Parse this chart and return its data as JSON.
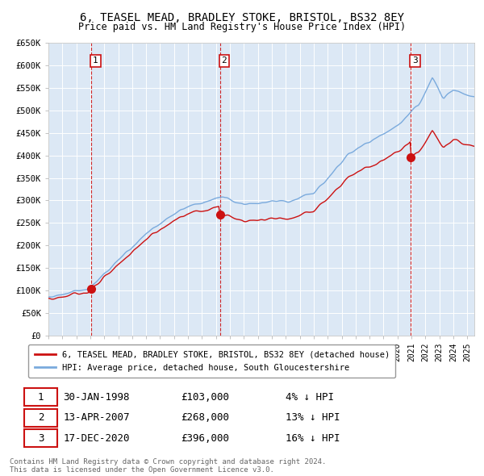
{
  "title": "6, TEASEL MEAD, BRADLEY STOKE, BRISTOL, BS32 8EY",
  "subtitle": "Price paid vs. HM Land Registry's House Price Index (HPI)",
  "ylabel_ticks": [
    "£0",
    "£50K",
    "£100K",
    "£150K",
    "£200K",
    "£250K",
    "£300K",
    "£350K",
    "£400K",
    "£450K",
    "£500K",
    "£550K",
    "£600K",
    "£650K"
  ],
  "ytick_vals": [
    0,
    50000,
    100000,
    150000,
    200000,
    250000,
    300000,
    350000,
    400000,
    450000,
    500000,
    550000,
    600000,
    650000
  ],
  "hpi_color": "#7aaadd",
  "price_color": "#cc1111",
  "vline_color": "#cc1111",
  "legend_label_price": "6, TEASEL MEAD, BRADLEY STOKE, BRISTOL, BS32 8EY (detached house)",
  "legend_label_hpi": "HPI: Average price, detached house, South Gloucestershire",
  "sale_info": [
    {
      "num": "1",
      "date": "30-JAN-1998",
      "price": "£103,000",
      "pct": "4% ↓ HPI"
    },
    {
      "num": "2",
      "date": "13-APR-2007",
      "price": "£268,000",
      "pct": "13% ↓ HPI"
    },
    {
      "num": "3",
      "date": "17-DEC-2020",
      "price": "£396,000",
      "pct": "16% ↓ HPI"
    }
  ],
  "footer": "Contains HM Land Registry data © Crown copyright and database right 2024.\nThis data is licensed under the Open Government Licence v3.0.",
  "plot_bg_color": "#dce8f5",
  "fig_bg_color": "#ffffff",
  "sale_dates": [
    1998.08,
    2007.28,
    2020.96
  ],
  "sale_prices": [
    103000,
    268000,
    396000
  ],
  "xlim": [
    1995.0,
    2025.5
  ],
  "ylim": [
    0,
    650000
  ]
}
